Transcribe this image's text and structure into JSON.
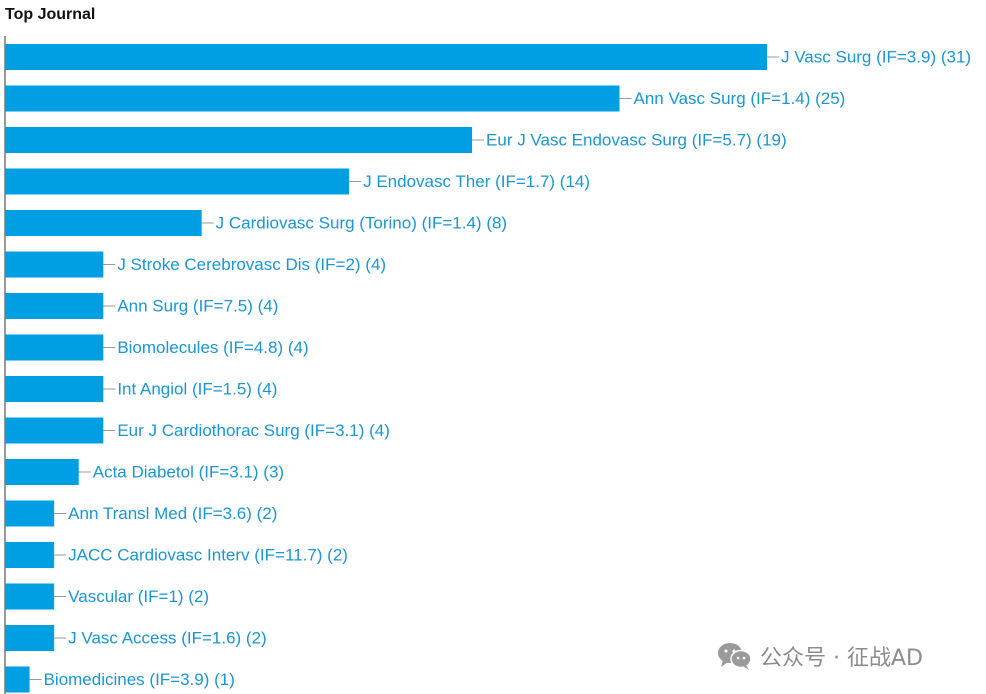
{
  "chart_data": {
    "type": "bar",
    "orientation": "horizontal",
    "title": "Top Journal",
    "xlabel": "",
    "ylabel": "",
    "xlim": [
      0,
      31
    ],
    "grid": false,
    "legend": "none",
    "bar_color": "#009fe3",
    "label_color": "#1a96d4",
    "categories": [
      "J Vasc Surg (IF=3.9) (31)",
      "Ann Vasc Surg (IF=1.4) (25)",
      "Eur J Vasc Endovasc Surg (IF=5.7) (19)",
      "J Endovasc Ther (IF=1.7) (14)",
      "J Cardiovasc Surg (Torino) (IF=1.4) (8)",
      "J Stroke Cerebrovasc Dis (IF=2) (4)",
      "Ann Surg (IF=7.5) (4)",
      "Biomolecules (IF=4.8) (4)",
      "Int Angiol (IF=1.5) (4)",
      "Eur J Cardiothorac Surg (IF=3.1) (4)",
      "Acta Diabetol (IF=3.1) (3)",
      "Ann Transl Med (IF=3.6) (2)",
      "JACC Cardiovasc Interv (IF=11.7) (2)",
      "Vascular (IF=1) (2)",
      "J Vasc Access (IF=1.6) (2)",
      "Biomedicines (IF=3.9) (1)"
    ],
    "values": [
      31,
      25,
      19,
      14,
      8,
      4,
      4,
      4,
      4,
      4,
      3,
      2,
      2,
      2,
      2,
      1
    ]
  },
  "watermark": {
    "icon": "wechat-icon",
    "text": "公众号 · 征战AD"
  }
}
